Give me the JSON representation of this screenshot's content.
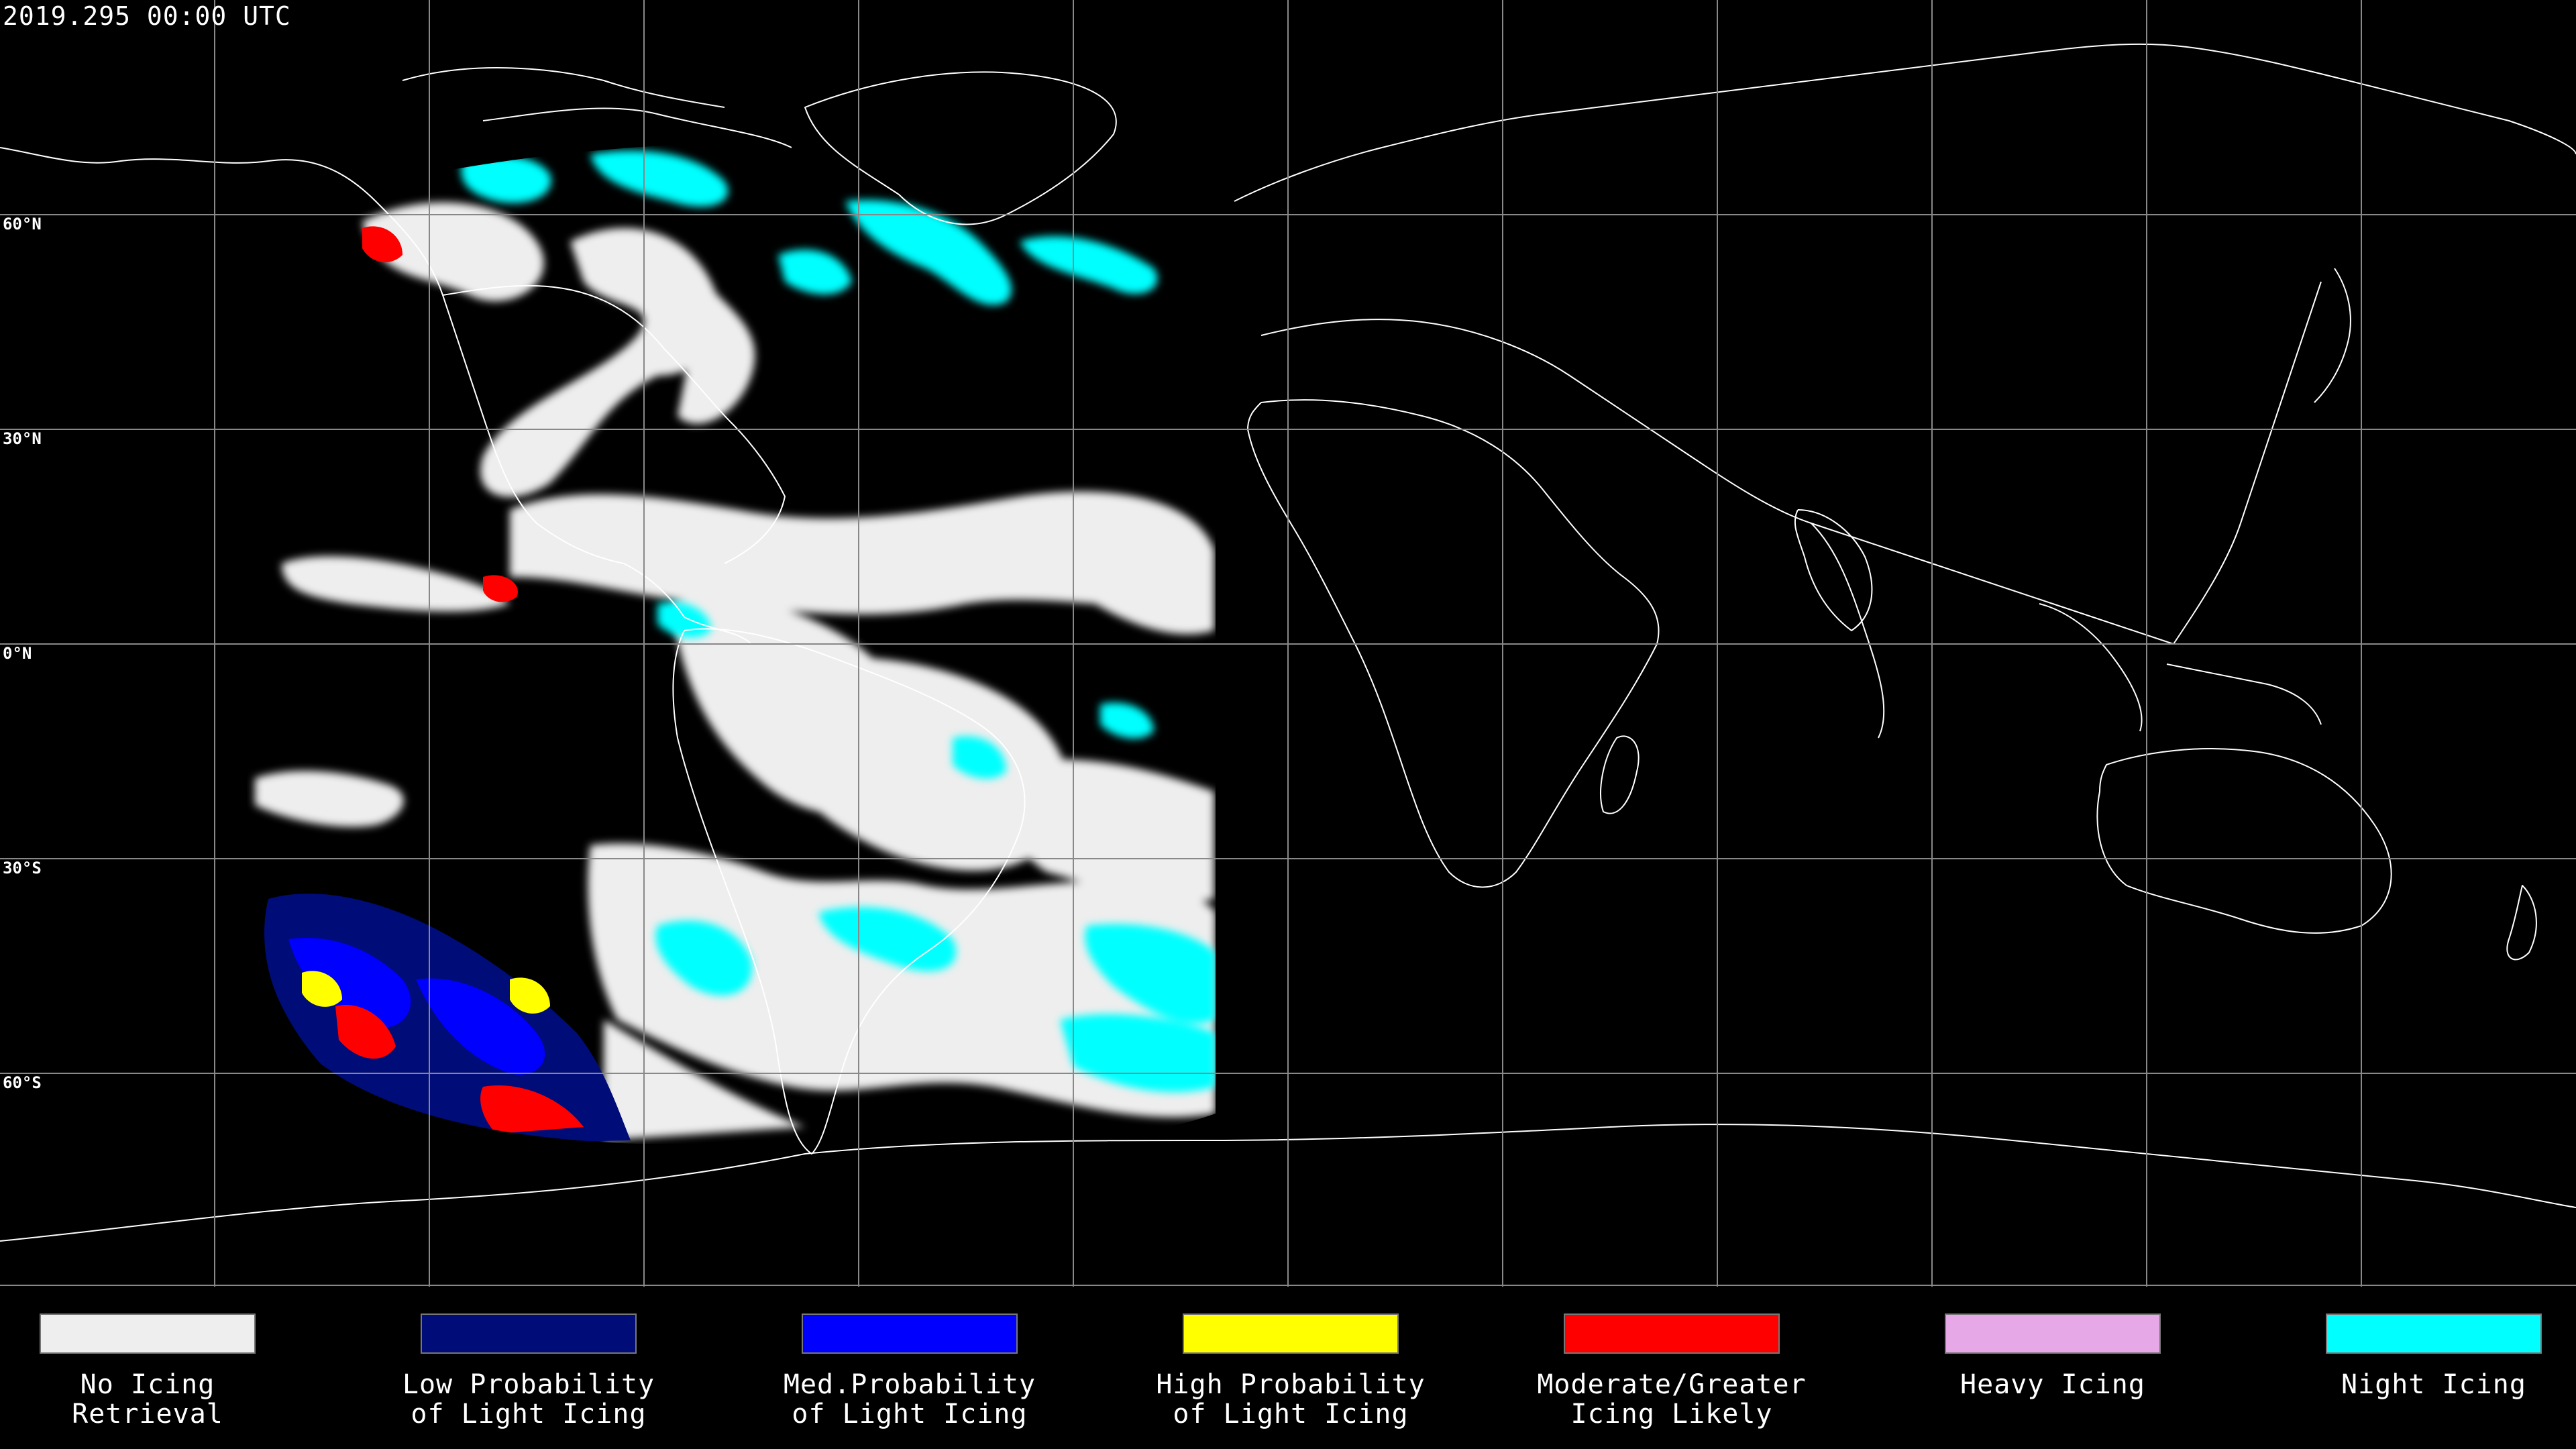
{
  "timestamp": "2019.295 00:00 UTC",
  "latitude_labels": [
    "60°N",
    "30°N",
    "0°N",
    "30°S",
    "60°S"
  ],
  "legend": [
    {
      "label": "No Icing\nRetrieval",
      "color": "#eeeeee"
    },
    {
      "label": "Low Probability\nof Light Icing",
      "color": "#000c78"
    },
    {
      "label": "Med.Probability\nof Light Icing",
      "color": "#0000ff"
    },
    {
      "label": "High Probability\nof Light Icing",
      "color": "#ffff00"
    },
    {
      "label": "Moderate/Greater\nIcing Likely",
      "color": "#ff0000"
    },
    {
      "label": "Heavy Icing",
      "color": "#e6a8e6"
    },
    {
      "label": "Night Icing",
      "color": "#00ffff"
    }
  ],
  "colors": {
    "background": "#000000",
    "gridlines": "#888888",
    "coastlines": "#ffffff"
  }
}
